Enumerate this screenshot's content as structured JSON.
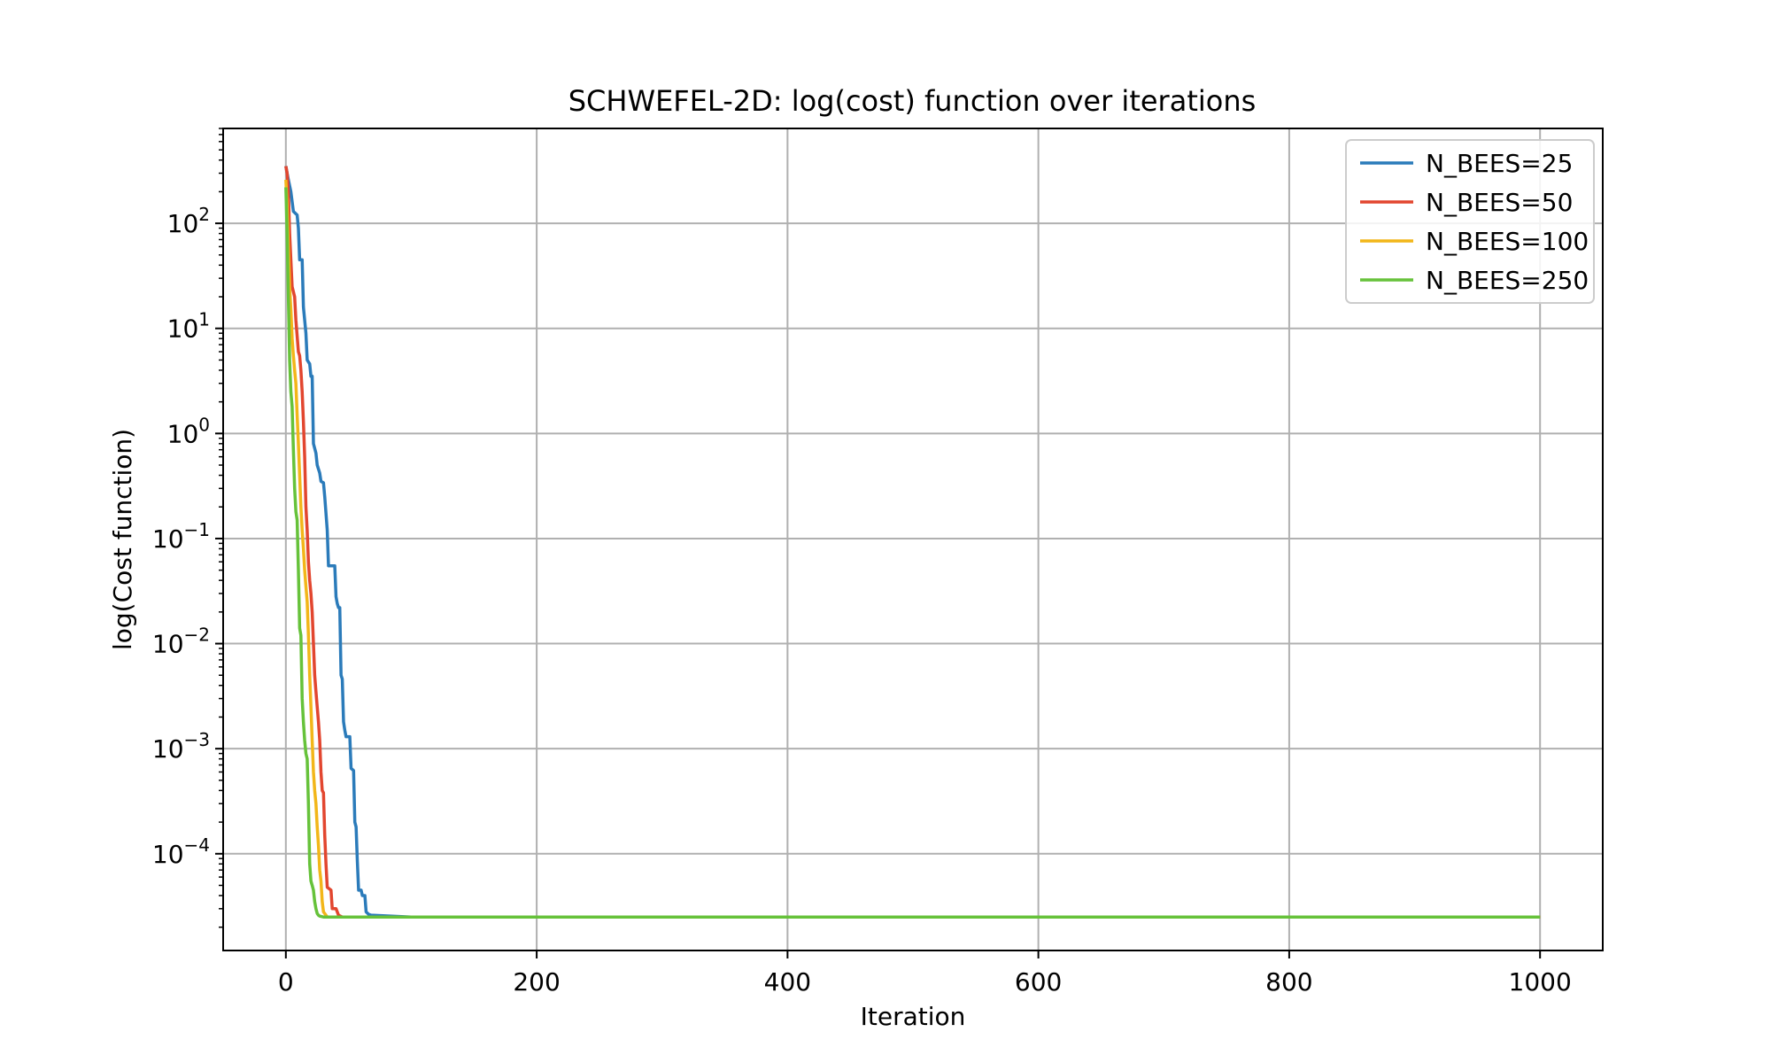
{
  "chart_data": {
    "type": "line",
    "title": "SCHWEFEL-2D: log(cost) function over iterations",
    "xlabel": "Iteration",
    "ylabel": "log(Cost function)",
    "xlim": [
      -50,
      1050
    ],
    "ylim": [
      1.2e-05,
      800
    ],
    "yscale": "log",
    "grid": true,
    "legend_position": "top-right",
    "xticks": [
      {
        "value": 0,
        "label": "0"
      },
      {
        "value": 200,
        "label": "200"
      },
      {
        "value": 400,
        "label": "400"
      },
      {
        "value": 600,
        "label": "600"
      },
      {
        "value": 800,
        "label": "800"
      },
      {
        "value": 1000,
        "label": "1000"
      }
    ],
    "yticks": [
      {
        "value": 100,
        "base": "10",
        "exp": "2"
      },
      {
        "value": 10,
        "base": "10",
        "exp": "1"
      },
      {
        "value": 1,
        "base": "10",
        "exp": "0"
      },
      {
        "value": 0.1,
        "base": "10",
        "exp": "−1"
      },
      {
        "value": 0.01,
        "base": "10",
        "exp": "−2"
      },
      {
        "value": 0.001,
        "base": "10",
        "exp": "−3"
      },
      {
        "value": 0.0001,
        "base": "10",
        "exp": "−4"
      }
    ],
    "series": [
      {
        "name": "N_BEES=25",
        "color": "#2b7bba",
        "points": [
          [
            0,
            350
          ],
          [
            2,
            260
          ],
          [
            4,
            200
          ],
          [
            6,
            130
          ],
          [
            9,
            120
          ],
          [
            10,
            90
          ],
          [
            11,
            45
          ],
          [
            13,
            45
          ],
          [
            14,
            16
          ],
          [
            16,
            9
          ],
          [
            17,
            5
          ],
          [
            19,
            4.6
          ],
          [
            20,
            3.5
          ],
          [
            21,
            3.5
          ],
          [
            22,
            0.8
          ],
          [
            24,
            0.65
          ],
          [
            25,
            0.5
          ],
          [
            27,
            0.42
          ],
          [
            28,
            0.35
          ],
          [
            30,
            0.34
          ],
          [
            31,
            0.25
          ],
          [
            33,
            0.12
          ],
          [
            34,
            0.055
          ],
          [
            39,
            0.055
          ],
          [
            40,
            0.028
          ],
          [
            41,
            0.024
          ],
          [
            42,
            0.022
          ],
          [
            43,
            0.022
          ],
          [
            44,
            0.005
          ],
          [
            45,
            0.0046
          ],
          [
            46,
            0.0018
          ],
          [
            47,
            0.0015
          ],
          [
            48,
            0.0013
          ],
          [
            51,
            0.0013
          ],
          [
            52,
            0.00065
          ],
          [
            54,
            0.00062
          ],
          [
            55,
            0.0002
          ],
          [
            56,
            0.00018
          ],
          [
            57,
            8.5e-05
          ],
          [
            58,
            4.5e-05
          ],
          [
            60,
            4.5e-05
          ],
          [
            61,
            4e-05
          ],
          [
            63,
            4e-05
          ],
          [
            64,
            2.8e-05
          ],
          [
            66,
            2.65e-05
          ],
          [
            68,
            2.6e-05
          ],
          [
            100,
            2.5e-05
          ],
          [
            1000,
            2.5e-05
          ]
        ]
      },
      {
        "name": "N_BEES=50",
        "color": "#e2462f",
        "points": [
          [
            0,
            350
          ],
          [
            1,
            300
          ],
          [
            2,
            200
          ],
          [
            3,
            80
          ],
          [
            5,
            25
          ],
          [
            7,
            20
          ],
          [
            8,
            12
          ],
          [
            10,
            6
          ],
          [
            11,
            5.5
          ],
          [
            12,
            4
          ],
          [
            13,
            2.5
          ],
          [
            14,
            1.3
          ],
          [
            15,
            0.6
          ],
          [
            16,
            0.2
          ],
          [
            17,
            0.12
          ],
          [
            18,
            0.06
          ],
          [
            19,
            0.04
          ],
          [
            20,
            0.03
          ],
          [
            21,
            0.02
          ],
          [
            22,
            0.01
          ],
          [
            23,
            0.005
          ],
          [
            24,
            0.0035
          ],
          [
            25,
            0.0025
          ],
          [
            26,
            0.0018
          ],
          [
            27,
            0.0012
          ],
          [
            28,
            0.0006
          ],
          [
            29,
            0.0004
          ],
          [
            30,
            0.00038
          ],
          [
            31,
            0.00015
          ],
          [
            32,
            8e-05
          ],
          [
            33,
            4.8e-05
          ],
          [
            36,
            4.5e-05
          ],
          [
            37,
            3e-05
          ],
          [
            40,
            3e-05
          ],
          [
            42,
            2.6e-05
          ],
          [
            45,
            2.5e-05
          ],
          [
            1000,
            2.5e-05
          ]
        ]
      },
      {
        "name": "N_BEES=100",
        "color": "#f2b619",
        "points": [
          [
            0,
            260
          ],
          [
            1,
            150
          ],
          [
            2,
            60
          ],
          [
            3,
            25
          ],
          [
            4,
            15
          ],
          [
            5,
            8
          ],
          [
            6,
            5.5
          ],
          [
            7,
            4
          ],
          [
            8,
            3
          ],
          [
            9,
            1.5
          ],
          [
            10,
            0.8
          ],
          [
            11,
            0.4
          ],
          [
            12,
            0.2
          ],
          [
            13,
            0.12
          ],
          [
            14,
            0.08
          ],
          [
            15,
            0.05
          ],
          [
            16,
            0.035
          ],
          [
            17,
            0.025
          ],
          [
            18,
            0.012
          ],
          [
            19,
            0.005
          ],
          [
            20,
            0.0025
          ],
          [
            21,
            0.0012
          ],
          [
            22,
            0.0006
          ],
          [
            23,
            0.0004
          ],
          [
            24,
            0.0003
          ],
          [
            25,
            0.00018
          ],
          [
            26,
            0.00012
          ],
          [
            27,
            7e-05
          ],
          [
            28,
            5.5e-05
          ],
          [
            29,
            3.5e-05
          ],
          [
            30,
            2.8e-05
          ],
          [
            33,
            2.5e-05
          ],
          [
            1000,
            2.5e-05
          ]
        ]
      },
      {
        "name": "N_BEES=250",
        "color": "#66c23a",
        "points": [
          [
            0,
            220
          ],
          [
            1,
            80
          ],
          [
            2,
            20
          ],
          [
            3,
            5
          ],
          [
            4,
            2.5
          ],
          [
            5,
            1.8
          ],
          [
            6,
            0.7
          ],
          [
            7,
            0.3
          ],
          [
            8,
            0.18
          ],
          [
            9,
            0.15
          ],
          [
            10,
            0.05
          ],
          [
            11,
            0.014
          ],
          [
            12,
            0.012
          ],
          [
            13,
            0.003
          ],
          [
            14,
            0.0018
          ],
          [
            15,
            0.0012
          ],
          [
            16,
            0.0009
          ],
          [
            17,
            0.0008
          ],
          [
            18,
            0.0003
          ],
          [
            19,
            8e-05
          ],
          [
            20,
            5.5e-05
          ],
          [
            21,
            5e-05
          ],
          [
            22,
            4.5e-05
          ],
          [
            23,
            3.5e-05
          ],
          [
            24,
            3e-05
          ],
          [
            25,
            2.7e-05
          ],
          [
            26,
            2.6e-05
          ],
          [
            27,
            2.55e-05
          ],
          [
            30,
            2.5e-05
          ],
          [
            1000,
            2.5e-05
          ]
        ]
      }
    ]
  }
}
